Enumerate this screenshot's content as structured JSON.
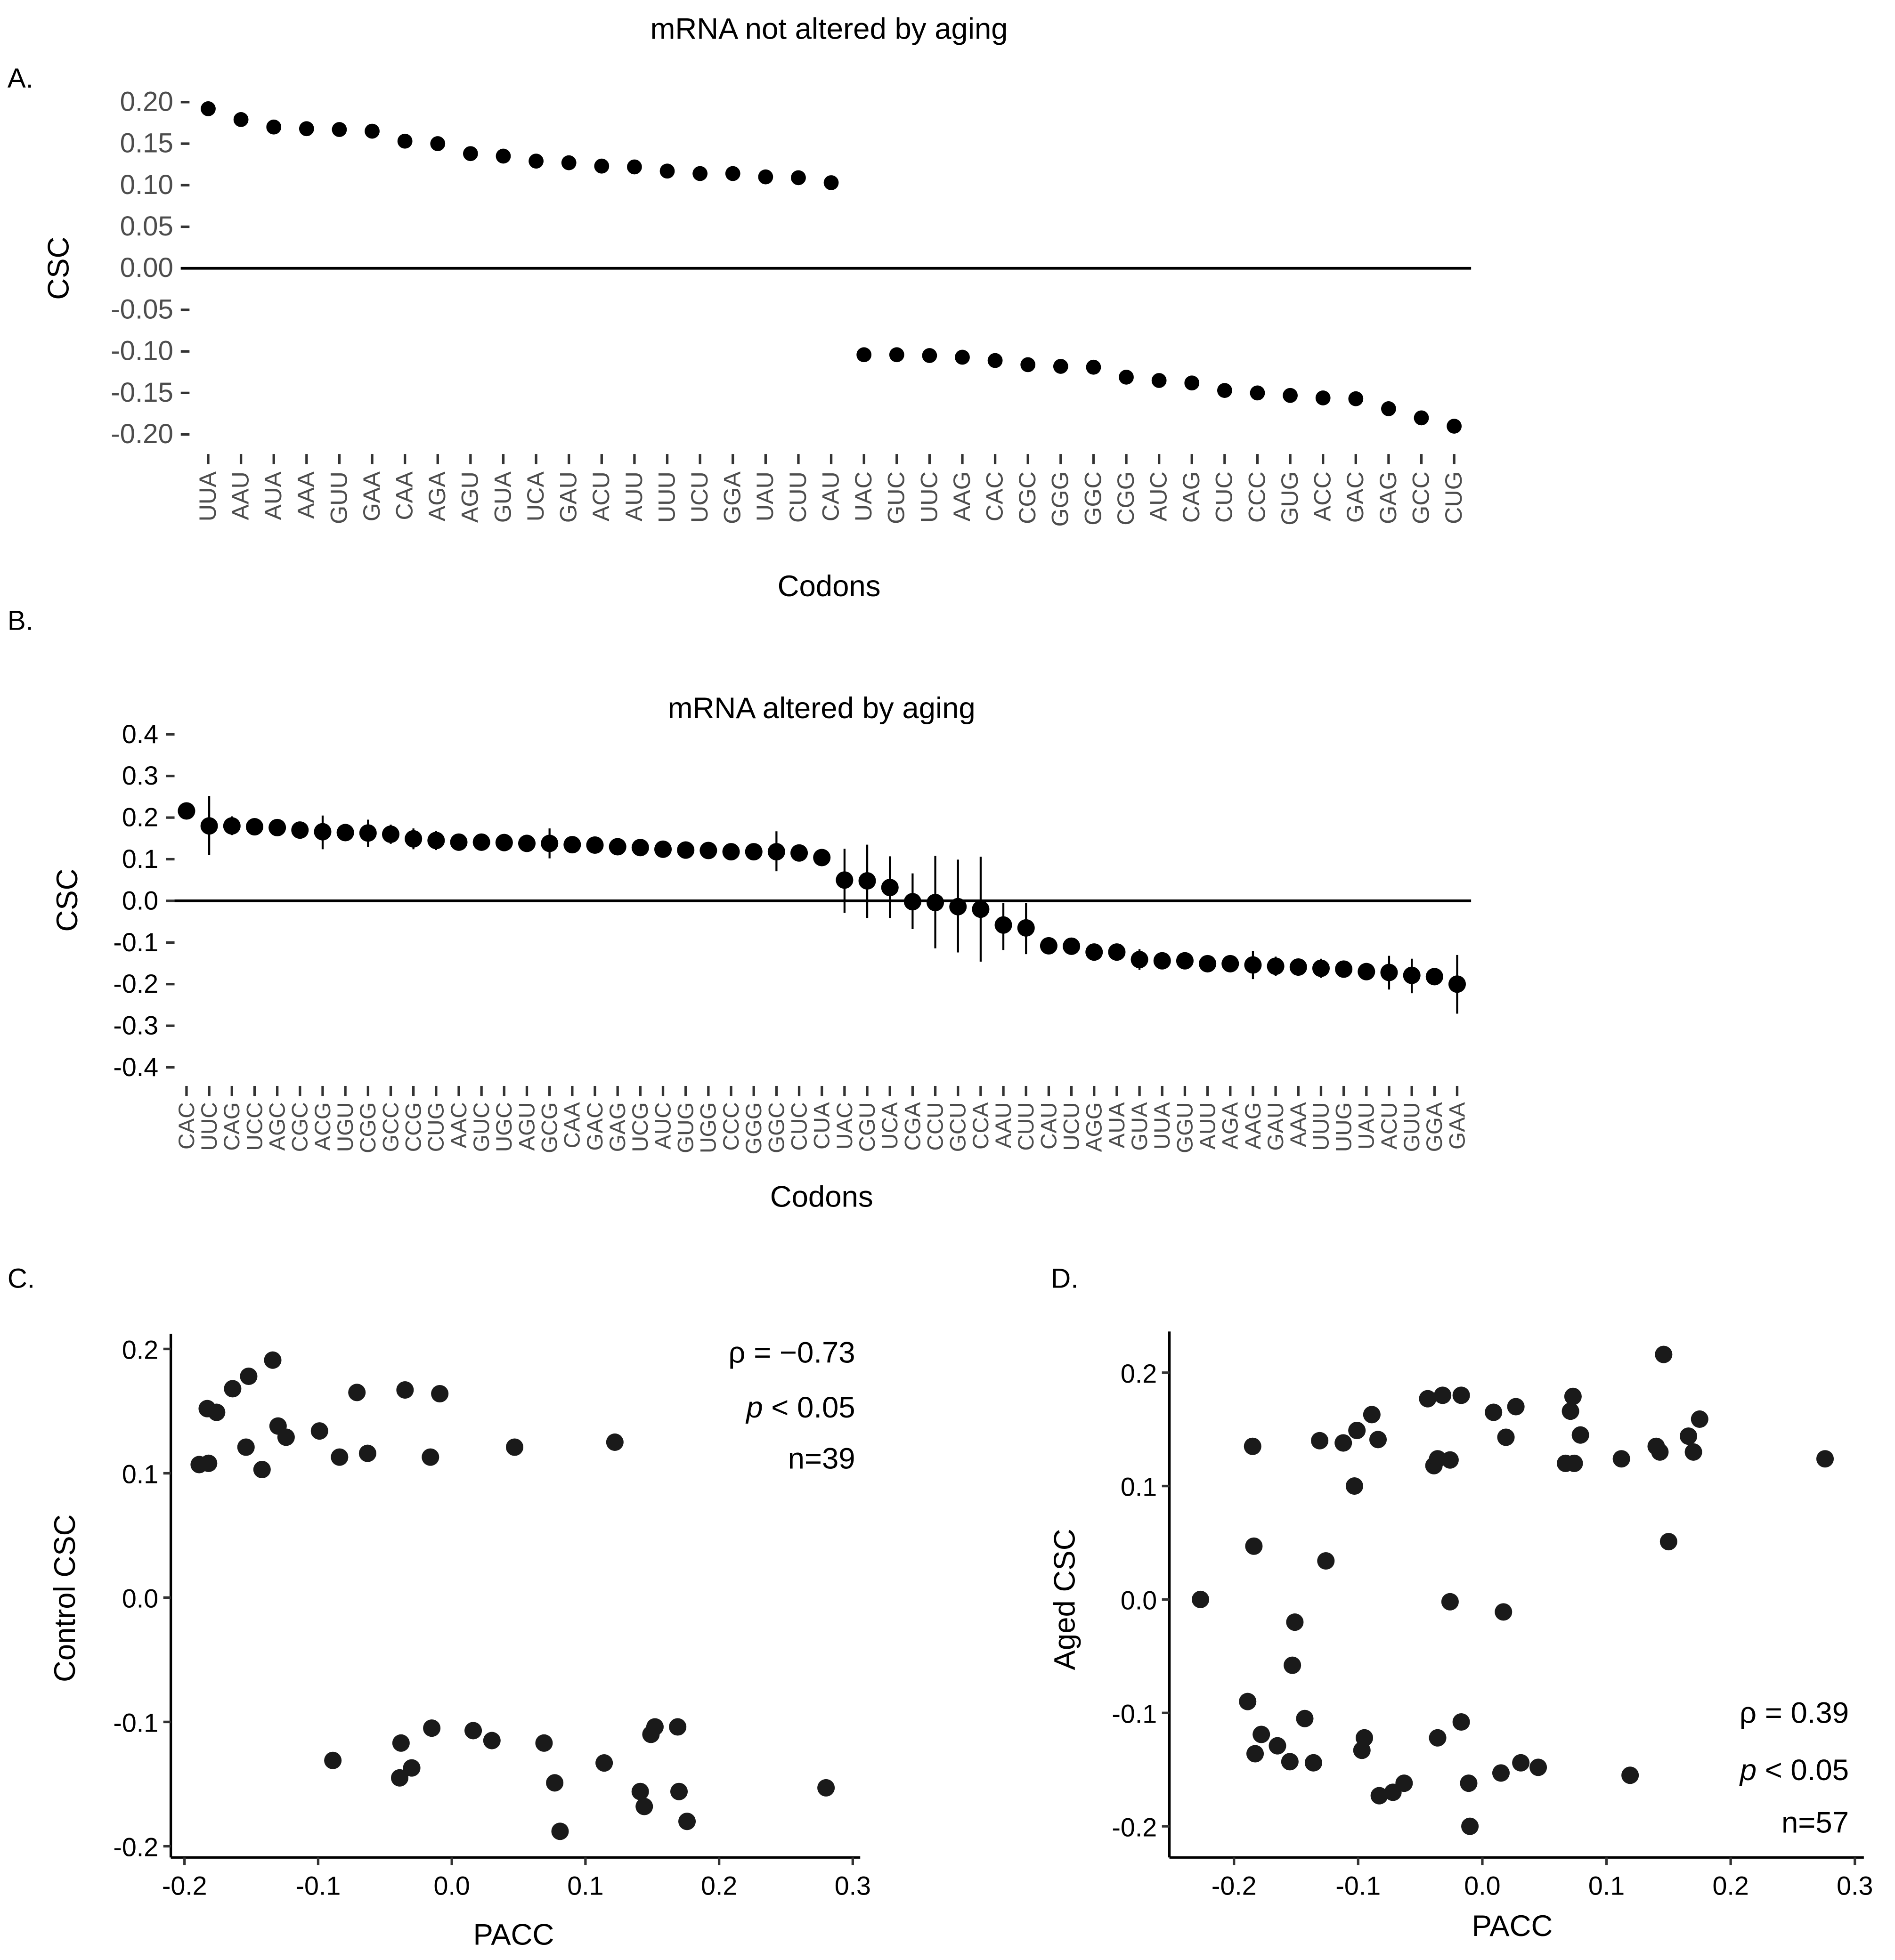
{
  "chart_data": [
    {
      "panel": "A.",
      "type": "scatter",
      "title": "mRNA not altered by aging",
      "xlabel": "Codons",
      "ylabel": "CSC",
      "ylim": [
        -0.2,
        0.2
      ],
      "yticks": [
        "0.20",
        "0.15",
        "0.10",
        "0.05",
        "0.00",
        "-0.05",
        "-0.10",
        "-0.15",
        "-0.20"
      ],
      "ytick_values": [
        0.2,
        0.15,
        0.1,
        0.05,
        0,
        -0.05,
        -0.1,
        -0.15,
        -0.2
      ],
      "hline": 0,
      "categories": [
        "UUA",
        "AAU",
        "AUA",
        "AAA",
        "GUU",
        "GAA",
        "CAA",
        "AGA",
        "AGU",
        "GUA",
        "UCA",
        "GAU",
        "ACU",
        "AUU",
        "UUU",
        "UCU",
        "GGA",
        "UAU",
        "CUU",
        "CAU",
        "UAC",
        "GUC",
        "UUC",
        "AAG",
        "CAC",
        "CGC",
        "GGG",
        "GGC",
        "CGG",
        "AUC",
        "CAG",
        "CUC",
        "CCC",
        "GUG",
        "ACC",
        "GAC",
        "GAG",
        "GCC",
        "CUG"
      ],
      "values": [
        0.192,
        0.179,
        0.17,
        0.168,
        0.167,
        0.165,
        0.153,
        0.15,
        0.138,
        0.135,
        0.129,
        0.127,
        0.123,
        0.122,
        0.117,
        0.114,
        0.114,
        0.11,
        0.109,
        0.103,
        -0.104,
        -0.104,
        -0.105,
        -0.107,
        -0.111,
        -0.116,
        -0.118,
        -0.119,
        -0.131,
        -0.135,
        -0.138,
        -0.147,
        -0.15,
        -0.153,
        -0.156,
        -0.157,
        -0.169,
        -0.18,
        -0.19
      ]
    },
    {
      "panel": "B.",
      "type": "scatter",
      "title": "mRNA altered by aging",
      "xlabel": "Codons",
      "ylabel": "CSC",
      "ylim": [
        -0.4,
        0.4
      ],
      "yticks": [
        "0.4",
        "0.3",
        "0.2",
        "0.1",
        "0.0",
        "-0.1",
        "-0.2",
        "-0.3",
        "-0.4"
      ],
      "ytick_values": [
        0.4,
        0.3,
        0.2,
        0.1,
        0,
        -0.1,
        -0.2,
        -0.3,
        -0.4
      ],
      "hline": 0,
      "categories": [
        "CAC",
        "UUC",
        "CAG",
        "UCC",
        "AGC",
        "CGC",
        "ACG",
        "UGU",
        "CGG",
        "GCC",
        "CCG",
        "CUG",
        "AAC",
        "GUC",
        "UGC",
        "AGU",
        "GCG",
        "CAA",
        "GAC",
        "GAG",
        "UCG",
        "AUC",
        "GUG",
        "UGG",
        "CCC",
        "GGG",
        "GGC",
        "CUC",
        "CUA",
        "UAC",
        "CGU",
        "UCA",
        "CGA",
        "CCU",
        "GCU",
        "CCA",
        "AAU",
        "CUU",
        "CAU",
        "UCU",
        "AGG",
        "AUA",
        "GUA",
        "UUA",
        "GGU",
        "AUU",
        "AGA",
        "AAG",
        "GAU",
        "AAA",
        "UUU",
        "UUG",
        "UAU",
        "ACU",
        "GUU",
        "GGA",
        "GAA"
      ],
      "values": [
        0.216,
        0.18,
        0.18,
        0.178,
        0.176,
        0.17,
        0.166,
        0.164,
        0.163,
        0.16,
        0.149,
        0.145,
        0.141,
        0.141,
        0.14,
        0.138,
        0.138,
        0.135,
        0.134,
        0.13,
        0.128,
        0.124,
        0.122,
        0.121,
        0.118,
        0.118,
        0.118,
        0.115,
        0.104,
        0.05,
        0.048,
        0.032,
        -0.002,
        -0.004,
        -0.014,
        -0.02,
        -0.058,
        -0.065,
        -0.108,
        -0.109,
        -0.123,
        -0.123,
        -0.141,
        -0.144,
        -0.144,
        -0.151,
        -0.151,
        -0.154,
        -0.157,
        -0.159,
        -0.162,
        -0.164,
        -0.17,
        -0.172,
        -0.179,
        -0.182,
        -0.2
      ],
      "error_low": [
        null,
        0.11,
        0.158,
        null,
        null,
        null,
        0.124,
        null,
        0.13,
        0.137,
        0.124,
        0.122,
        null,
        null,
        null,
        null,
        0.102,
        null,
        null,
        null,
        null,
        null,
        null,
        null,
        null,
        null,
        0.071,
        null,
        null,
        -0.029,
        -0.041,
        -0.041,
        -0.068,
        -0.114,
        -0.124,
        -0.146,
        -0.118,
        -0.128,
        null,
        null,
        null,
        null,
        -0.166,
        null,
        null,
        null,
        null,
        -0.188,
        -0.18,
        -0.18,
        -0.185,
        null,
        null,
        -0.213,
        -0.222,
        null,
        -0.271
      ],
      "error_high": [
        null,
        0.252,
        0.203,
        null,
        null,
        null,
        0.205,
        null,
        0.195,
        0.183,
        0.174,
        0.168,
        null,
        null,
        null,
        null,
        0.174,
        null,
        null,
        null,
        null,
        null,
        null,
        null,
        null,
        null,
        0.167,
        null,
        null,
        0.125,
        0.135,
        0.107,
        0.066,
        0.108,
        0.099,
        0.106,
        -0.005,
        -0.005,
        null,
        null,
        null,
        null,
        -0.116,
        null,
        null,
        null,
        null,
        -0.12,
        -0.134,
        -0.14,
        -0.139,
        null,
        null,
        -0.132,
        -0.139,
        null,
        -0.13
      ]
    },
    {
      "panel": "C.",
      "type": "scatter",
      "xlabel": "PACC",
      "ylabel": "Control CSC",
      "xlim": [
        -0.2,
        0.3
      ],
      "ylim": [
        -0.2,
        0.2
      ],
      "xticks": [
        "-0.2",
        "-0.1",
        "0.0",
        "0.1",
        "0.2",
        "0.3"
      ],
      "xtick_values": [
        -0.2,
        -0.1,
        0,
        0.1,
        0.2,
        0.3
      ],
      "yticks": [
        "0.2",
        "0.1",
        "0.0",
        "-0.1",
        "-0.2"
      ],
      "ytick_values": [
        0.2,
        0.1,
        0,
        -0.1,
        -0.2
      ],
      "annotations": {
        "rho": "ρ = −0.73",
        "p_symbol": "p",
        "p_rest": " < 0.05",
        "n": "n=39"
      },
      "points": [
        [
          -0.189,
          0.107
        ],
        [
          -0.182,
          0.108
        ],
        [
          -0.183,
          0.152
        ],
        [
          -0.176,
          0.149
        ],
        [
          -0.164,
          0.168
        ],
        [
          -0.152,
          0.178
        ],
        [
          -0.134,
          0.191
        ],
        [
          -0.154,
          0.121
        ],
        [
          -0.142,
          0.103
        ],
        [
          -0.13,
          0.138
        ],
        [
          -0.124,
          0.129
        ],
        [
          -0.099,
          0.134
        ],
        [
          -0.071,
          0.165
        ],
        [
          -0.084,
          0.113
        ],
        [
          -0.063,
          0.116
        ],
        [
          -0.035,
          0.167
        ],
        [
          -0.009,
          0.164
        ],
        [
          -0.016,
          0.113
        ],
        [
          0.047,
          0.121
        ],
        [
          0.122,
          0.125
        ],
        [
          -0.089,
          -0.131
        ],
        [
          -0.038,
          -0.117
        ],
        [
          -0.039,
          -0.145
        ],
        [
          -0.03,
          -0.137
        ],
        [
          -0.015,
          -0.105
        ],
        [
          0.016,
          -0.107
        ],
        [
          0.03,
          -0.115
        ],
        [
          0.069,
          -0.117
        ],
        [
          0.077,
          -0.149
        ],
        [
          0.081,
          -0.188
        ],
        [
          0.114,
          -0.133
        ],
        [
          0.141,
          -0.156
        ],
        [
          0.144,
          -0.168
        ],
        [
          0.149,
          -0.11
        ],
        [
          0.152,
          -0.104
        ],
        [
          0.169,
          -0.104
        ],
        [
          0.17,
          -0.156
        ],
        [
          0.176,
          -0.18
        ],
        [
          0.28,
          -0.153
        ]
      ]
    },
    {
      "panel": "D.",
      "type": "scatter",
      "xlabel": "PACC",
      "ylabel": "Aged CSC",
      "xlim": [
        -0.25,
        0.3
      ],
      "ylim": [
        -0.2,
        0.2
      ],
      "xticks": [
        "-0.2",
        "-0.1",
        "0.0",
        "0.1",
        "0.2",
        "0.3"
      ],
      "xtick_values": [
        -0.2,
        -0.1,
        0,
        0.1,
        0.2,
        0.3
      ],
      "yticks": [
        "0.2",
        "0.1",
        "0.0",
        "-0.1",
        "-0.2"
      ],
      "ytick_values": [
        0.2,
        0.1,
        0,
        -0.1,
        -0.2
      ],
      "annotations": {
        "rho": "ρ = 0.39",
        "p_symbol": "p",
        "p_rest": " < 0.05",
        "n": "n=57"
      },
      "points": [
        [
          -0.227,
          0.0
        ],
        [
          -0.189,
          -0.09
        ],
        [
          -0.183,
          -0.136
        ],
        [
          -0.178,
          -0.119
        ],
        [
          -0.165,
          -0.129
        ],
        [
          -0.155,
          -0.143
        ],
        [
          -0.185,
          0.135
        ],
        [
          -0.184,
          0.047
        ],
        [
          -0.153,
          -0.058
        ],
        [
          -0.151,
          -0.02
        ],
        [
          -0.143,
          -0.105
        ],
        [
          -0.136,
          -0.144
        ],
        [
          -0.131,
          0.14
        ],
        [
          -0.126,
          0.034
        ],
        [
          -0.112,
          0.138
        ],
        [
          -0.103,
          0.1
        ],
        [
          -0.101,
          0.149
        ],
        [
          -0.097,
          -0.133
        ],
        [
          -0.095,
          -0.122
        ],
        [
          -0.089,
          0.163
        ],
        [
          -0.084,
          0.141
        ],
        [
          -0.083,
          -0.173
        ],
        [
          -0.072,
          -0.17
        ],
        [
          -0.063,
          -0.162
        ],
        [
          -0.044,
          0.177
        ],
        [
          -0.039,
          0.118
        ],
        [
          -0.036,
          0.124
        ],
        [
          -0.036,
          -0.122
        ],
        [
          -0.032,
          0.18
        ],
        [
          -0.026,
          -0.002
        ],
        [
          -0.026,
          0.123
        ],
        [
          -0.017,
          0.18
        ],
        [
          -0.017,
          -0.108
        ],
        [
          -0.011,
          -0.162
        ],
        [
          -0.01,
          -0.2
        ],
        [
          0.009,
          0.165
        ],
        [
          0.017,
          -0.011
        ],
        [
          0.015,
          -0.153
        ],
        [
          0.019,
          0.143
        ],
        [
          0.027,
          0.17
        ],
        [
          0.031,
          -0.144
        ],
        [
          0.045,
          -0.148
        ],
        [
          0.067,
          0.12
        ],
        [
          0.071,
          0.166
        ],
        [
          0.073,
          0.179
        ],
        [
          0.074,
          0.12
        ],
        [
          0.079,
          0.145
        ],
        [
          0.112,
          0.124
        ],
        [
          0.119,
          -0.155
        ],
        [
          0.14,
          0.135
        ],
        [
          0.143,
          0.13
        ],
        [
          0.146,
          0.216
        ],
        [
          0.15,
          0.051
        ],
        [
          0.166,
          0.144
        ],
        [
          0.17,
          0.13
        ],
        [
          0.175,
          0.159
        ],
        [
          0.276,
          0.124
        ]
      ]
    }
  ]
}
